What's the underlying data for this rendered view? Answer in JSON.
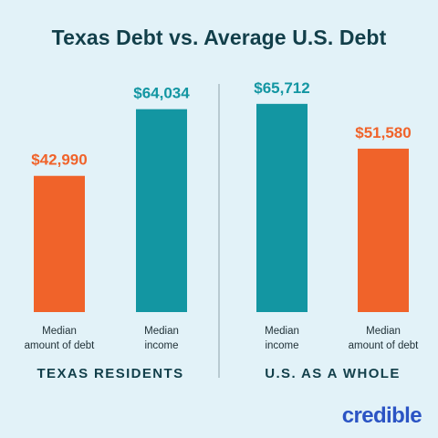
{
  "title": "Texas Debt vs. Average U.S. Debt",
  "logo": "credible",
  "colors": {
    "background": "#e2f2f8",
    "orange": "#f0632a",
    "teal": "#1396a2",
    "title": "#123f4a",
    "divider": "#8fa3aa"
  },
  "chart_data": {
    "type": "bar",
    "title": "Texas Debt vs. Average U.S. Debt",
    "ylim": [
      0,
      72000
    ],
    "grid": false,
    "groups": [
      {
        "name": "TEXAS RESIDENTS",
        "bars": [
          {
            "label": [
              "Median",
              "amount of debt"
            ],
            "value": 42990,
            "display": "$42,990",
            "color": "orange"
          },
          {
            "label": [
              "Median",
              "income"
            ],
            "value": 64034,
            "display": "$64,034",
            "color": "teal"
          }
        ]
      },
      {
        "name": "U.S. AS A WHOLE",
        "bars": [
          {
            "label": [
              "Median",
              "income"
            ],
            "value": 65712,
            "display": "$65,712",
            "color": "teal"
          },
          {
            "label": [
              "Median",
              "amount of debt"
            ],
            "value": 51580,
            "display": "$51,580",
            "color": "orange"
          }
        ]
      }
    ]
  }
}
